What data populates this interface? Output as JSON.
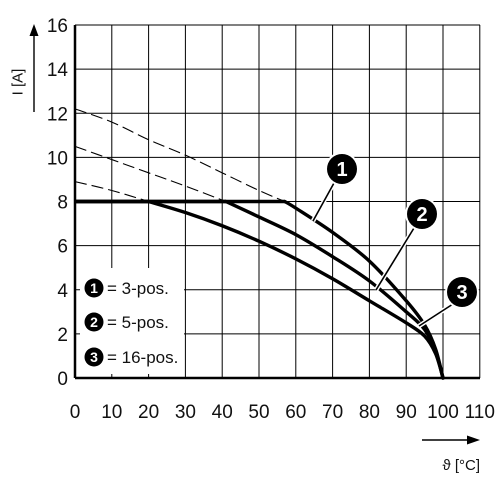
{
  "chart_data": {
    "type": "line",
    "title": "",
    "xlabel": "ϑ [°C]",
    "ylabel": "I [A]",
    "xlim": [
      0,
      110
    ],
    "ylim": [
      0,
      16
    ],
    "x_ticks": [
      "0",
      "10",
      "20",
      "30",
      "40",
      "50",
      "60",
      "70",
      "80",
      "90",
      "100",
      "110"
    ],
    "y_ticks": [
      "0",
      "2",
      "4",
      "6",
      "8",
      "10",
      "12",
      "14",
      "16"
    ],
    "grid": true,
    "legend_position": "bottom-left",
    "series": [
      {
        "name": "3-pos.",
        "marker": "1",
        "points": [
          [
            0,
            8
          ],
          [
            57,
            8
          ],
          [
            60,
            7.7
          ],
          [
            70,
            6.6
          ],
          [
            80,
            5.3
          ],
          [
            90,
            3.5
          ],
          [
            95,
            2.4
          ],
          [
            98,
            1.3
          ],
          [
            100,
            0
          ]
        ],
        "dashed_points": [
          [
            0,
            12.2
          ],
          [
            10,
            11.6
          ],
          [
            20,
            10.8
          ],
          [
            30,
            10.1
          ],
          [
            40,
            9.3
          ],
          [
            50,
            8.5
          ],
          [
            57,
            8
          ]
        ]
      },
      {
        "name": "5-pos.",
        "marker": "2",
        "points": [
          [
            0,
            8
          ],
          [
            41,
            8
          ],
          [
            50,
            7.3
          ],
          [
            60,
            6.5
          ],
          [
            70,
            5.5
          ],
          [
            80,
            4.4
          ],
          [
            90,
            3
          ],
          [
            95,
            2.2
          ],
          [
            98,
            1.2
          ],
          [
            100,
            0
          ]
        ],
        "dashed_points": [
          [
            0,
            10.5
          ],
          [
            10,
            9.9
          ],
          [
            20,
            9.3
          ],
          [
            30,
            8.7
          ],
          [
            41,
            8
          ]
        ]
      },
      {
        "name": "16-pos.",
        "marker": "3",
        "points": [
          [
            0,
            8
          ],
          [
            20,
            8
          ],
          [
            30,
            7.5
          ],
          [
            40,
            6.9
          ],
          [
            50,
            6.2
          ],
          [
            60,
            5.4
          ],
          [
            70,
            4.5
          ],
          [
            80,
            3.5
          ],
          [
            90,
            2.5
          ],
          [
            95,
            1.9
          ],
          [
            98,
            1.1
          ],
          [
            100,
            0
          ]
        ],
        "dashed_points": [
          [
            0,
            8.9
          ],
          [
            10,
            8.5
          ],
          [
            20,
            8
          ]
        ]
      }
    ],
    "legend": [
      {
        "marker": "1",
        "label": "= 3-pos."
      },
      {
        "marker": "2",
        "label": "= 5-pos."
      },
      {
        "marker": "3",
        "label": "= 16-pos."
      }
    ],
    "callouts": [
      "1",
      "2",
      "3"
    ]
  }
}
